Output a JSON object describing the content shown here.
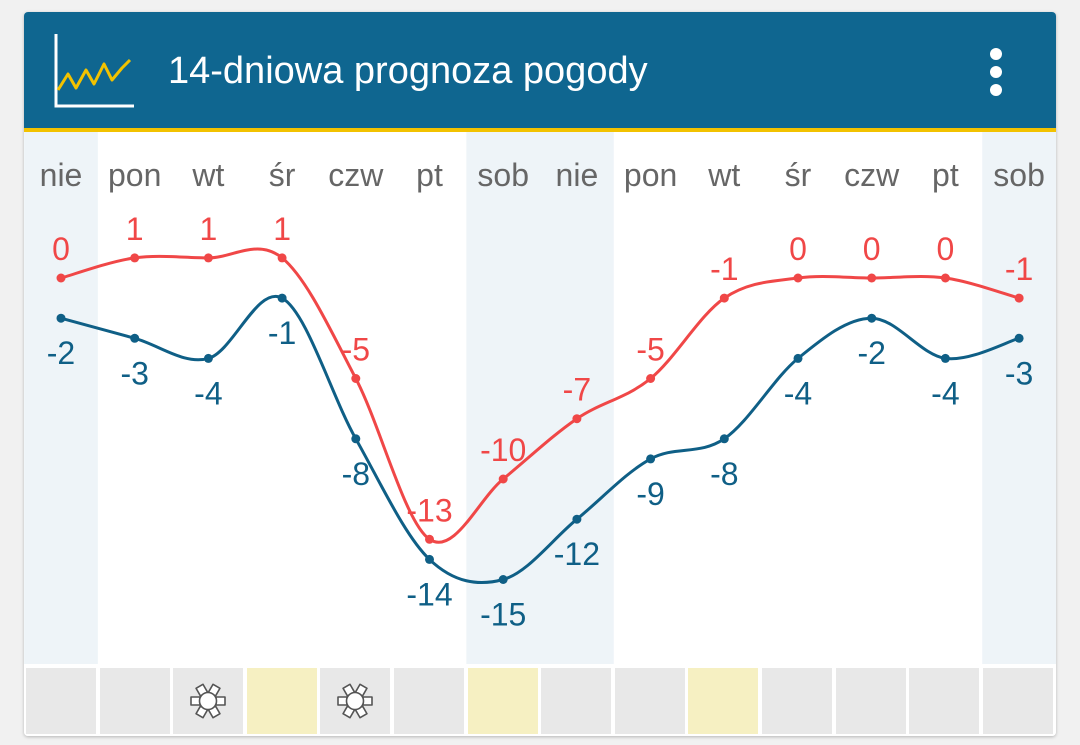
{
  "header": {
    "title": "14-dniowa prognoza pogody",
    "app_icon": "line-chart-icon",
    "menu_icon": "more-vertical-icon"
  },
  "colors": {
    "header_bg": "#0f6690",
    "header_accent": "#f2c200",
    "high_series": "#f04747",
    "low_series": "#0f5f86",
    "weekend_band": "#eef4f8",
    "cell_default": "#e8e8e8",
    "cell_highlight": "#f6f0c2"
  },
  "chart_data": {
    "type": "line",
    "categories": [
      "nie",
      "pon",
      "wt",
      "śr",
      "czw",
      "pt",
      "sob",
      "nie",
      "pon",
      "wt",
      "śr",
      "czw",
      "pt",
      "sob"
    ],
    "weekend_columns": [
      0,
      6,
      7,
      13
    ],
    "ylim": [
      -16,
      2
    ],
    "grid": false,
    "legend": "none",
    "series": [
      {
        "values": [
          0,
          1,
          1,
          1,
          -5,
          -13,
          -10,
          -7,
          -5,
          -1,
          0,
          0,
          0,
          -1
        ]
      },
      {
        "values": [
          -2,
          -3,
          -4,
          -1,
          -8,
          -14,
          -15,
          -12,
          -9,
          -8,
          -4,
          -2,
          -4,
          -3
        ]
      }
    ]
  },
  "condition_strip": [
    {
      "state": "default",
      "icon": ""
    },
    {
      "state": "default",
      "icon": ""
    },
    {
      "state": "default",
      "icon": "snowflake-icon"
    },
    {
      "state": "highlight",
      "icon": ""
    },
    {
      "state": "default",
      "icon": "snowflake-icon"
    },
    {
      "state": "default",
      "icon": ""
    },
    {
      "state": "highlight",
      "icon": ""
    },
    {
      "state": "default",
      "icon": ""
    },
    {
      "state": "default",
      "icon": ""
    },
    {
      "state": "highlight",
      "icon": ""
    },
    {
      "state": "default",
      "icon": ""
    },
    {
      "state": "default",
      "icon": ""
    },
    {
      "state": "default",
      "icon": ""
    },
    {
      "state": "default",
      "icon": ""
    }
  ]
}
